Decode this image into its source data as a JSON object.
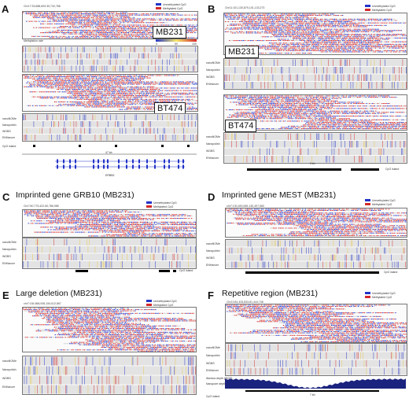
{
  "panels": {
    "a": {
      "letter": "A",
      "coord": "Chr17:39,688,609-39,732,788",
      "legend": [
        "Unmethylated CpG",
        "Methylated CpG"
      ],
      "methylation_rate_label": "Methylation rate",
      "scale_ticks": [
        "0",
        "50",
        "100"
      ],
      "cell_lines": [
        "MB231",
        "BT474"
      ],
      "tracks": [
        "nanoNOMe",
        "Nanopolish",
        "WGBS",
        "ENHancer"
      ],
      "cpg_island": "CpG island",
      "gene_size": "47 kb",
      "gene": "ERBB2"
    },
    "b": {
      "letter": "B",
      "coord": "Chr11:101,130,879-101,133,273",
      "legend": [
        "Unmethylated CpG",
        "Methylated CpG"
      ],
      "cell_lines": [
        "MB231",
        "BT474"
      ],
      "tracks": [
        "nanoNOMe",
        "Nanopolish",
        "WGBS",
        "ENHancer"
      ],
      "scale": "3 kb",
      "cpg_island": "CpG island"
    },
    "c": {
      "letter": "C",
      "title": "Imprinted gene GRB10 (MB231)",
      "coord": "Chr7:50,775,422-50,786,985",
      "legend": [
        "Unmethylated CpG",
        "Methylated CpG"
      ],
      "tracks": [
        "nanoNOMe",
        "Nanopolish",
        "WGBS",
        "ENHancer"
      ],
      "cpg_island": "CpG island"
    },
    "d": {
      "letter": "D",
      "title": "Imprinted gene MEST (MB231)",
      "coord": "chr7:130,490,069-130,497,560",
      "legend": [
        "Unmethylated CpG",
        "Methylated CpG"
      ],
      "tracks": [
        "nanoNOMe",
        "Nanopolish",
        "WGBS",
        "ENHancer"
      ],
      "cpg_island": "CpG island"
    },
    "e": {
      "letter": "E",
      "title": "Large deletion (MB231)",
      "coord": "chr7:154,566,926-154,612,867",
      "legend": [
        "Unmethylated CpG",
        "Methylated CpG"
      ],
      "tracks": [
        "nanoNOMe",
        "Nanopolish",
        "WGBS",
        "ENHancer"
      ]
    },
    "f": {
      "letter": "F",
      "title": "Repetitive region (MB231)",
      "coord": "Chr10:81,433,833-81,444,748",
      "legend": [
        "Unmethylated CpG",
        "Methylated CpG"
      ],
      "tracks": [
        "nanoNOMe",
        "Nanopolish",
        "WGBS",
        "ENHancer"
      ],
      "extra_tracks": [
        "Illumina depth (WGS)",
        "Nanopore depth (WGS)"
      ],
      "scale": "7 kb",
      "cpg_island": "CpG island"
    }
  },
  "colors": {
    "unmethylated": "#2233c8",
    "methylated": "#d42a2a",
    "track_bg": "#e3e3e3",
    "depth": "#1a237e"
  }
}
